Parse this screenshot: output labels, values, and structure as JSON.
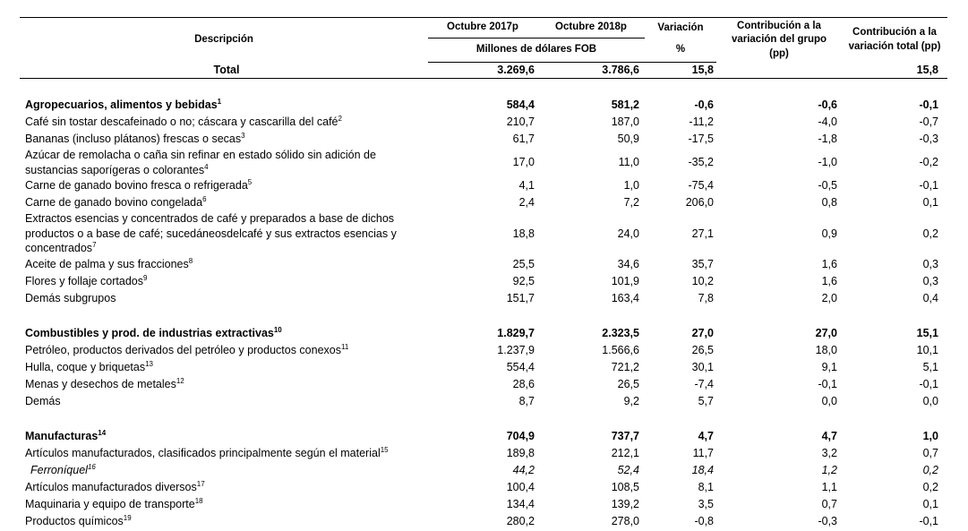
{
  "table": {
    "header": {
      "description": "Descripción",
      "col1": "Octubre 2017p",
      "col2": "Octubre 2018p",
      "units": "Millones de dólares FOB",
      "variation": "Variación",
      "variation_unit": "%",
      "group_contribution": "Contribución a la variación del grupo (pp)",
      "total_contribution": "Contribución a la variación total (pp)"
    },
    "total": {
      "desc": "Total",
      "values": [
        "3.269,6",
        "3.786,6",
        "15,8",
        null,
        "15,8"
      ]
    },
    "sections": [
      {
        "header": {
          "desc": "Agropecuarios, alimentos y bebidas",
          "sup": "1",
          "values": [
            "584,4",
            "581,2",
            "-0,6",
            "-0,6",
            "-0,1"
          ]
        },
        "rows": [
          {
            "desc": "Café sin tostar descafeinado o no; cáscara y cascarilla del café",
            "sup": "2",
            "values": [
              "210,7",
              "187,0",
              "-11,2",
              "-4,0",
              "-0,7"
            ]
          },
          {
            "desc": "Bananas (incluso plátanos) frescas o secas",
            "sup": "3",
            "values": [
              "61,7",
              "50,9",
              "-17,5",
              "-1,8",
              "-0,3"
            ]
          },
          {
            "desc": "Azúcar de remolacha o caña sin refinar en estado sólido sin adición de sustancias saporígeras o colorantes",
            "sup": "4",
            "values": [
              "17,0",
              "11,0",
              "-35,2",
              "-1,0",
              "-0,2"
            ]
          },
          {
            "desc": "Carne de ganado bovino fresca o refrigerada",
            "sup": "5",
            "values": [
              "4,1",
              "1,0",
              "-75,4",
              "-0,5",
              "-0,1"
            ]
          },
          {
            "desc": "Carne de ganado bovino congelada",
            "sup": "6",
            "values": [
              "2,4",
              "7,2",
              "206,0",
              "0,8",
              "0,1"
            ]
          },
          {
            "desc": "Extractos esencias y concentrados de café y preparados a base de dichos productos o a base de café; sucedáneosdelcafé y sus extractos esencias y concentrados",
            "sup": "7",
            "values": [
              "18,8",
              "24,0",
              "27,1",
              "0,9",
              "0,2"
            ]
          },
          {
            "desc": "Aceite de palma y sus fracciones",
            "sup": "8",
            "values": [
              "25,5",
              "34,6",
              "35,7",
              "1,6",
              "0,3"
            ]
          },
          {
            "desc": "Flores y follaje cortados",
            "sup": "9",
            "values": [
              "92,5",
              "101,9",
              "10,2",
              "1,6",
              "0,3"
            ]
          },
          {
            "desc": "Demás subgrupos",
            "values": [
              "151,7",
              "163,4",
              "7,8",
              "2,0",
              "0,4"
            ]
          }
        ]
      },
      {
        "header": {
          "desc": "Combustibles y prod. de industrias extractivas",
          "sup": "10",
          "values": [
            "1.829,7",
            "2.323,5",
            "27,0",
            "27,0",
            "15,1"
          ]
        },
        "rows": [
          {
            "desc": "Petróleo, productos derivados del petróleo y productos conexos",
            "sup": "11",
            "values": [
              "1.237,9",
              "1.566,6",
              "26,5",
              "18,0",
              "10,1"
            ]
          },
          {
            "desc": "Hulla, coque y briquetas",
            "sup": "13",
            "values": [
              "554,4",
              "721,2",
              "30,1",
              "9,1",
              "5,1"
            ]
          },
          {
            "desc": "Menas y desechos de metales",
            "sup": "12",
            "values": [
              "28,6",
              "26,5",
              "-7,4",
              "-0,1",
              "-0,1"
            ]
          },
          {
            "desc": "Demás",
            "values": [
              "8,7",
              "9,2",
              "5,7",
              "0,0",
              "0,0"
            ]
          }
        ]
      },
      {
        "header": {
          "desc": "Manufacturas",
          "sup": "14",
          "values": [
            "704,9",
            "737,7",
            "4,7",
            "4,7",
            "1,0"
          ]
        },
        "rows": [
          {
            "desc": "Artículos manufacturados, clasificados principalmente según el material",
            "sup": "15",
            "values": [
              "189,8",
              "212,1",
              "11,7",
              "3,2",
              "0,7"
            ]
          },
          {
            "desc": "Ferroníquel",
            "sup": "16",
            "italic": true,
            "values": [
              "44,2",
              "52,4",
              "18,4",
              "1,2",
              "0,2"
            ]
          },
          {
            "desc": "Artículos manufacturados diversos",
            "sup": "17",
            "values": [
              "100,4",
              "108,5",
              "8,1",
              "1,1",
              "0,2"
            ]
          },
          {
            "desc": "Maquinaria y equipo de transporte",
            "sup": "18",
            "values": [
              "134,4",
              "139,2",
              "3,5",
              "0,7",
              "0,1"
            ]
          },
          {
            "desc": "Productos químicos",
            "sup": "19",
            "values": [
              "280,2",
              "278,0",
              "-0,8",
              "-0,3",
              "-0,1"
            ]
          }
        ]
      }
    ]
  }
}
